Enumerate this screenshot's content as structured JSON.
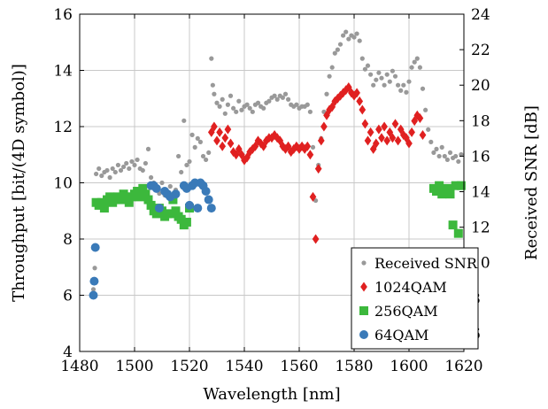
{
  "chart_data": {
    "type": "scatter",
    "xlabel": "Wavelength [nm]",
    "ylabel": "Throughput [bit/(4D symbol)]",
    "y2label": "Received SNR [dB]",
    "xlim": [
      1480,
      1620
    ],
    "ylim": [
      4,
      16
    ],
    "y2lim": [
      5,
      24
    ],
    "xticks": [
      1480,
      1500,
      1520,
      1540,
      1560,
      1580,
      1600,
      1620
    ],
    "yticks": [
      4,
      6,
      8,
      10,
      12,
      14,
      16
    ],
    "y2ticks": [
      6,
      8,
      10,
      12,
      14,
      16,
      18,
      20,
      22,
      24
    ],
    "grid": true,
    "legend_position": "bottom-right",
    "series": [
      {
        "name": "Received SNR",
        "axis": "right",
        "marker": "circle-small",
        "color": "#999999",
        "points": [
          [
            1485,
            8.5
          ],
          [
            1485.5,
            9.7
          ],
          [
            1486,
            15.0
          ],
          [
            1487,
            15.3
          ],
          [
            1488,
            14.9
          ],
          [
            1489,
            15.1
          ],
          [
            1490,
            15.2
          ],
          [
            1491,
            14.8
          ],
          [
            1492,
            15.3
          ],
          [
            1493,
            15.1
          ],
          [
            1494,
            15.5
          ],
          [
            1495,
            15.2
          ],
          [
            1496,
            15.4
          ],
          [
            1497,
            15.6
          ],
          [
            1498,
            15.3
          ],
          [
            1499,
            15.7
          ],
          [
            1500,
            15.5
          ],
          [
            1501,
            15.8
          ],
          [
            1502,
            15.3
          ],
          [
            1503,
            15.2
          ],
          [
            1504,
            15.6
          ],
          [
            1505,
            16.4
          ],
          [
            1506,
            14.8
          ],
          [
            1507,
            14.5
          ],
          [
            1508,
            14.2
          ],
          [
            1509,
            13.9
          ],
          [
            1510,
            14.5
          ],
          [
            1511,
            13.8
          ],
          [
            1512,
            14.0
          ],
          [
            1513,
            14.3
          ],
          [
            1514,
            13.7
          ],
          [
            1515,
            14.1
          ],
          [
            1516,
            16.0
          ],
          [
            1517,
            15.1
          ],
          [
            1518,
            18.0
          ],
          [
            1519,
            15.5
          ],
          [
            1520,
            15.7
          ],
          [
            1521,
            17.2
          ],
          [
            1522,
            16.5
          ],
          [
            1523,
            17.0
          ],
          [
            1524,
            16.8
          ],
          [
            1525,
            16.0
          ],
          [
            1526,
            15.8
          ],
          [
            1527,
            16.2
          ],
          [
            1528,
            21.5
          ],
          [
            1528.5,
            20.0
          ],
          [
            1529,
            19.5
          ],
          [
            1530,
            19.0
          ],
          [
            1531,
            18.8
          ],
          [
            1532,
            19.2
          ],
          [
            1533,
            18.4
          ],
          [
            1534,
            18.9
          ],
          [
            1535,
            19.4
          ],
          [
            1536,
            18.7
          ],
          [
            1537,
            18.5
          ],
          [
            1538,
            19.1
          ],
          [
            1539,
            18.6
          ],
          [
            1540,
            18.8
          ],
          [
            1541,
            18.9
          ],
          [
            1542,
            18.7
          ],
          [
            1543,
            18.5
          ],
          [
            1544,
            18.9
          ],
          [
            1545,
            19.0
          ],
          [
            1546,
            18.8
          ],
          [
            1547,
            18.7
          ],
          [
            1548,
            19.0
          ],
          [
            1549,
            19.1
          ],
          [
            1550,
            19.3
          ],
          [
            1551,
            19.4
          ],
          [
            1552,
            19.2
          ],
          [
            1553,
            19.4
          ],
          [
            1554,
            19.3
          ],
          [
            1555,
            19.5
          ],
          [
            1556,
            19.2
          ],
          [
            1557,
            18.9
          ],
          [
            1558,
            18.8
          ],
          [
            1559,
            18.9
          ],
          [
            1560,
            18.7
          ],
          [
            1561,
            18.8
          ],
          [
            1562,
            18.8
          ],
          [
            1563,
            18.9
          ],
          [
            1564,
            18.5
          ],
          [
            1565,
            16.5
          ],
          [
            1566,
            13.5
          ],
          [
            1567,
            15.5
          ],
          [
            1568,
            17.0
          ],
          [
            1569,
            18.5
          ],
          [
            1570,
            19.5
          ],
          [
            1571,
            20.5
          ],
          [
            1572,
            21.0
          ],
          [
            1573,
            21.8
          ],
          [
            1574,
            22.0
          ],
          [
            1575,
            22.3
          ],
          [
            1576,
            22.8
          ],
          [
            1577,
            23.0
          ],
          [
            1578,
            22.6
          ],
          [
            1579,
            22.8
          ],
          [
            1580,
            22.7
          ],
          [
            1581,
            22.9
          ],
          [
            1582,
            22.5
          ],
          [
            1583,
            21.5
          ],
          [
            1584,
            20.9
          ],
          [
            1585,
            21.1
          ],
          [
            1586,
            20.6
          ],
          [
            1587,
            20.0
          ],
          [
            1588,
            20.3
          ],
          [
            1589,
            20.7
          ],
          [
            1590,
            20.4
          ],
          [
            1591,
            20.0
          ],
          [
            1592,
            20.6
          ],
          [
            1593,
            20.2
          ],
          [
            1594,
            20.8
          ],
          [
            1595,
            20.5
          ],
          [
            1596,
            20.0
          ],
          [
            1597,
            19.7
          ],
          [
            1598,
            20.0
          ],
          [
            1599,
            19.6
          ],
          [
            1600,
            20.2
          ],
          [
            1601,
            21.0
          ],
          [
            1602,
            21.3
          ],
          [
            1603,
            21.5
          ],
          [
            1604,
            21.0
          ],
          [
            1605,
            19.8
          ],
          [
            1606,
            18.6
          ],
          [
            1607,
            17.5
          ],
          [
            1608,
            16.8
          ],
          [
            1609,
            16.2
          ],
          [
            1610,
            16.4
          ],
          [
            1611,
            16.0
          ],
          [
            1612,
            16.5
          ],
          [
            1613,
            16.0
          ],
          [
            1614,
            15.8
          ],
          [
            1615,
            16.2
          ],
          [
            1616,
            15.9
          ],
          [
            1617,
            16.0
          ],
          [
            1618,
            15.7
          ],
          [
            1619,
            16.1
          ]
        ]
      },
      {
        "name": "1024QAM",
        "axis": "left",
        "marker": "diamond",
        "color": "#e02020",
        "points": [
          [
            1528,
            11.8
          ],
          [
            1529,
            12.0
          ],
          [
            1530,
            11.5
          ],
          [
            1531,
            11.8
          ],
          [
            1532,
            11.3
          ],
          [
            1533,
            11.6
          ],
          [
            1534,
            11.9
          ],
          [
            1535,
            11.4
          ],
          [
            1536,
            11.1
          ],
          [
            1537,
            11.0
          ],
          [
            1538,
            11.2
          ],
          [
            1539,
            11.0
          ],
          [
            1540,
            10.8
          ],
          [
            1541,
            10.9
          ],
          [
            1542,
            11.1
          ],
          [
            1543,
            11.2
          ],
          [
            1544,
            11.3
          ],
          [
            1545,
            11.5
          ],
          [
            1546,
            11.4
          ],
          [
            1547,
            11.3
          ],
          [
            1548,
            11.5
          ],
          [
            1549,
            11.6
          ],
          [
            1550,
            11.6
          ],
          [
            1551,
            11.7
          ],
          [
            1552,
            11.6
          ],
          [
            1553,
            11.5
          ],
          [
            1554,
            11.3
          ],
          [
            1555,
            11.2
          ],
          [
            1556,
            11.3
          ],
          [
            1557,
            11.1
          ],
          [
            1558,
            11.2
          ],
          [
            1559,
            11.3
          ],
          [
            1560,
            11.2
          ],
          [
            1561,
            11.3
          ],
          [
            1562,
            11.2
          ],
          [
            1563,
            11.3
          ],
          [
            1564,
            11.0
          ],
          [
            1565,
            9.5
          ],
          [
            1566,
            8.0
          ],
          [
            1567,
            10.5
          ],
          [
            1568,
            11.5
          ],
          [
            1569,
            12.0
          ],
          [
            1570,
            12.4
          ],
          [
            1571,
            12.6
          ],
          [
            1572,
            12.7
          ],
          [
            1573,
            12.9
          ],
          [
            1574,
            13.0
          ],
          [
            1575,
            13.1
          ],
          [
            1576,
            13.2
          ],
          [
            1577,
            13.3
          ],
          [
            1578,
            13.4
          ],
          [
            1579,
            13.2
          ],
          [
            1580,
            13.1
          ],
          [
            1581,
            13.2
          ],
          [
            1582,
            12.9
          ],
          [
            1583,
            12.6
          ],
          [
            1584,
            12.1
          ],
          [
            1585,
            11.5
          ],
          [
            1586,
            11.8
          ],
          [
            1587,
            11.2
          ],
          [
            1588,
            11.4
          ],
          [
            1589,
            11.9
          ],
          [
            1590,
            11.6
          ],
          [
            1591,
            12.0
          ],
          [
            1592,
            11.5
          ],
          [
            1593,
            11.8
          ],
          [
            1594,
            11.6
          ],
          [
            1595,
            12.1
          ],
          [
            1596,
            11.5
          ],
          [
            1597,
            11.9
          ],
          [
            1598,
            11.7
          ],
          [
            1599,
            11.6
          ],
          [
            1600,
            11.4
          ],
          [
            1601,
            11.8
          ],
          [
            1602,
            12.2
          ],
          [
            1603,
            12.4
          ],
          [
            1604,
            12.3
          ],
          [
            1605,
            11.7
          ]
        ]
      },
      {
        "name": "256QAM",
        "axis": "left",
        "marker": "square",
        "color": "#3cb83c",
        "points": [
          [
            1486,
            9.3
          ],
          [
            1487,
            9.2
          ],
          [
            1488,
            9.3
          ],
          [
            1489,
            9.1
          ],
          [
            1490,
            9.4
          ],
          [
            1491,
            9.5
          ],
          [
            1492,
            9.3
          ],
          [
            1493,
            9.4
          ],
          [
            1494,
            9.5
          ],
          [
            1495,
            9.4
          ],
          [
            1496,
            9.6
          ],
          [
            1497,
            9.5
          ],
          [
            1498,
            9.3
          ],
          [
            1499,
            9.5
          ],
          [
            1500,
            9.6
          ],
          [
            1501,
            9.7
          ],
          [
            1502,
            9.5
          ],
          [
            1503,
            9.8
          ],
          [
            1504,
            9.6
          ],
          [
            1505,
            9.4
          ],
          [
            1506,
            9.2
          ],
          [
            1507,
            9.0
          ],
          [
            1508,
            8.9
          ],
          [
            1509,
            9.1
          ],
          [
            1510,
            9.0
          ],
          [
            1511,
            8.8
          ],
          [
            1512,
            8.9
          ],
          [
            1513,
            8.9
          ],
          [
            1514,
            9.4
          ],
          [
            1515,
            9.0
          ],
          [
            1516,
            8.8
          ],
          [
            1517,
            8.7
          ],
          [
            1518,
            8.5
          ],
          [
            1519,
            8.6
          ],
          [
            1520,
            9.1
          ],
          [
            1609,
            9.8
          ],
          [
            1610,
            9.7
          ],
          [
            1611,
            9.9
          ],
          [
            1612,
            9.6
          ],
          [
            1613,
            9.7
          ],
          [
            1614,
            9.8
          ],
          [
            1615,
            9.6
          ],
          [
            1616,
            8.5
          ],
          [
            1617,
            9.9
          ],
          [
            1618,
            8.2
          ],
          [
            1619,
            9.9
          ]
        ]
      },
      {
        "name": "64QAM",
        "axis": "left",
        "marker": "circle",
        "color": "#3a7ab8",
        "points": [
          [
            1485,
            6.0
          ],
          [
            1485.3,
            6.5
          ],
          [
            1485.7,
            7.7
          ],
          [
            1506,
            9.9
          ],
          [
            1507,
            9.9
          ],
          [
            1508,
            9.8
          ],
          [
            1509,
            9.1
          ],
          [
            1511,
            9.7
          ],
          [
            1512,
            9.6
          ],
          [
            1513,
            9.5
          ],
          [
            1515,
            9.6
          ],
          [
            1518,
            9.9
          ],
          [
            1519,
            9.8
          ],
          [
            1520,
            9.2
          ],
          [
            1521,
            9.9
          ],
          [
            1522,
            10.0
          ],
          [
            1523,
            9.1
          ],
          [
            1524,
            10.0
          ],
          [
            1525,
            9.9
          ],
          [
            1526,
            9.7
          ],
          [
            1527,
            9.4
          ],
          [
            1528,
            9.1
          ]
        ]
      }
    ]
  }
}
